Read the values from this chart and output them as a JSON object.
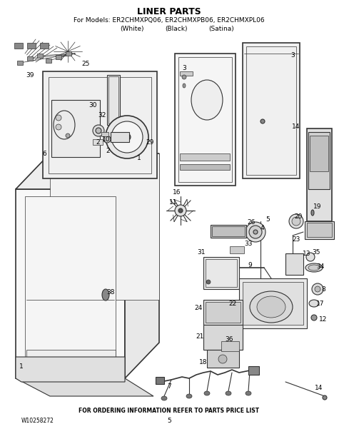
{
  "title_line1": "LINER PARTS",
  "title_line2": "For Models: ER2CHMXPQ06, ER2CHMXPB06, ER2CHMXPL06",
  "title_line3_a": "(White)",
  "title_line3_b": "(Black)",
  "title_line3_c": "(Satina)",
  "footer_left": "W10258272",
  "footer_center": "FOR ORDERING INFORMATION REFER TO PARTS PRICE LIST",
  "footer_page": "5",
  "bg_color": "#ffffff",
  "text_color": "#000000",
  "line_color": "#333333",
  "fig_width": 4.75,
  "fig_height": 6.15,
  "dpi": 100
}
